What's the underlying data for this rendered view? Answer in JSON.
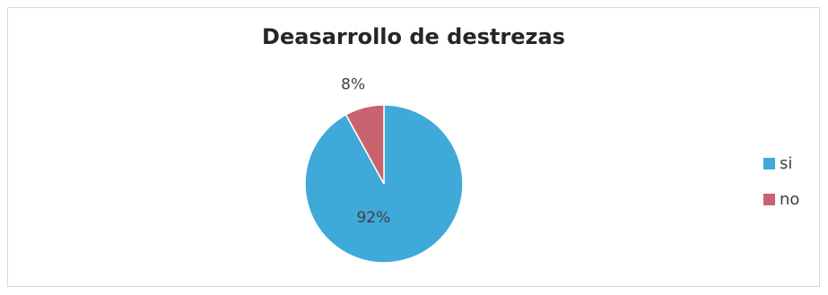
{
  "chart_data": {
    "type": "pie",
    "title": "Deasarrollo de destrezas",
    "categories": [
      "si",
      "no"
    ],
    "values": [
      92,
      8
    ],
    "data_labels": [
      "92%",
      "8%"
    ],
    "colors": [
      "#3fa9d9",
      "#c9636f"
    ],
    "legend_position": "right"
  }
}
